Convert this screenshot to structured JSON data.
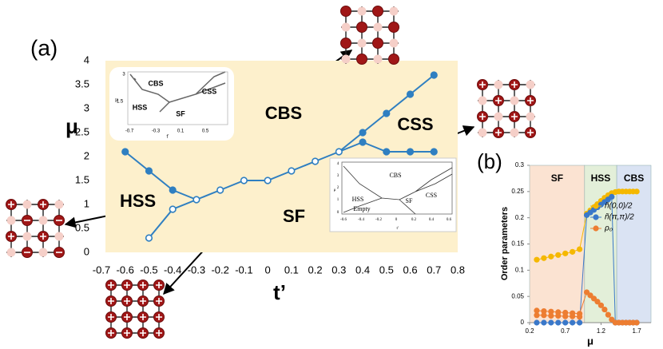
{
  "chart_data": [
    {
      "type": "line",
      "panel_label": "(a)",
      "xlabel": "t’",
      "ylabel": "μ",
      "xlim": [
        -0.7,
        0.8
      ],
      "xticks": [
        -0.7,
        -0.6,
        -0.5,
        -0.4,
        -0.3,
        -0.2,
        -0.1,
        0,
        0.1,
        0.2,
        0.3,
        0.4,
        0.5,
        0.6,
        0.7,
        0.8
      ],
      "ylim": [
        0,
        4
      ],
      "yticks": [
        0,
        0.5,
        1,
        1.5,
        2,
        2.5,
        3,
        3.5,
        4
      ],
      "background": "#fdf0cc",
      "color": "#2f7fc1",
      "annotations": [
        "CBS",
        "CSS",
        "HSS",
        "SF"
      ],
      "series": [
        {
          "marker": "filled",
          "x": [
            -0.6,
            -0.5,
            -0.4
          ],
          "values": [
            2.1,
            1.7,
            1.3
          ]
        },
        {
          "marker": "open",
          "x": [
            -0.5,
            -0.4,
            -0.3,
            -0.2,
            -0.1,
            0,
            0.1,
            0.2,
            0.3
          ],
          "values": [
            0.3,
            0.9,
            1.1,
            1.3,
            1.5,
            1.5,
            1.7,
            1.9,
            2.1
          ]
        },
        {
          "marker": "filled",
          "x": [
            0.4,
            0.5,
            0.6,
            0.7
          ],
          "values": [
            2.5,
            2.9,
            3.3,
            3.7
          ]
        },
        {
          "marker": "filled",
          "x": [
            0.4,
            0.5,
            0.6,
            0.7
          ],
          "values": [
            2.3,
            2.1,
            2.1,
            2.1
          ]
        }
      ],
      "insets": [
        {
          "texts": [
            "CBS",
            "CSS",
            "HSS",
            "SF",
            "μ",
            "t’",
            "3",
            "1.5",
            "-0.7",
            "-0.3",
            "0.1",
            "0.5"
          ]
        },
        {
          "texts": [
            "CBS",
            "CSS",
            "HSS",
            "SF",
            "Empty",
            "μ",
            "t’",
            "-0.6",
            "-0.4",
            "-0.2",
            "0",
            "0.2",
            "0.4",
            "0.6",
            "4",
            "3",
            "2",
            "1",
            "0"
          ]
        }
      ]
    },
    {
      "type": "scatter",
      "panel_label": "(b)",
      "xlabel": "μ",
      "ylabel": "Order parameters",
      "xlim": [
        0.2,
        1.9
      ],
      "xticks": [
        0.2,
        0.7,
        1.2,
        1.7
      ],
      "ylim": [
        0,
        0.3
      ],
      "yticks": [
        0,
        0.05,
        0.1,
        0.15,
        0.2,
        0.25,
        0.3
      ],
      "legend": "right",
      "regions": [
        {
          "label": "SF",
          "range": [
            0.2,
            0.97
          ],
          "color": "#fbe3d2"
        },
        {
          "label": "HSS",
          "range": [
            0.97,
            1.42
          ],
          "color": "#e3efd9"
        },
        {
          "label": "CBS",
          "range": [
            1.42,
            1.9
          ],
          "color": "#dae3f3"
        }
      ],
      "series": [
        {
          "name": "ñ(0,0)/2",
          "color": "#f5b800",
          "x": [
            0.3,
            0.4,
            0.5,
            0.6,
            0.7,
            0.8,
            0.9,
            1.0,
            1.05,
            1.1,
            1.15,
            1.2,
            1.25,
            1.3,
            1.35,
            1.4,
            1.45,
            1.5,
            1.55,
            1.6,
            1.65,
            1.7
          ],
          "values": [
            0.12,
            0.123,
            0.126,
            0.129,
            0.132,
            0.135,
            0.14,
            0.208,
            0.214,
            0.22,
            0.226,
            0.232,
            0.238,
            0.243,
            0.247,
            0.249,
            0.25,
            0.25,
            0.25,
            0.25,
            0.25,
            0.25
          ]
        },
        {
          "name": "ñ(π,π)/2",
          "color": "#3a78c9",
          "x": [
            0.3,
            0.4,
            0.5,
            0.6,
            0.7,
            0.8,
            0.9,
            1.0,
            1.05,
            1.1,
            1.15,
            1.2,
            1.25,
            1.3,
            1.35,
            1.4,
            1.45,
            1.5,
            1.55,
            1.6,
            1.65,
            1.7
          ],
          "values": [
            0,
            0,
            0,
            0,
            0,
            0,
            0,
            0.205,
            0.21,
            0.215,
            0.22,
            0.225,
            0.23,
            0.235,
            0.24,
            0,
            0,
            0,
            0,
            0,
            0,
            0
          ]
        },
        {
          "name": "ρ₀",
          "color": "#ed7d31",
          "x": [
            0.3,
            0.4,
            0.5,
            0.6,
            0.7,
            0.8,
            0.9,
            1.0,
            1.05,
            1.1,
            1.15,
            1.2,
            1.25,
            1.3,
            1.35,
            1.4,
            1.45,
            1.5,
            1.55,
            1.6,
            1.65,
            1.7
          ],
          "values": [
            0.023,
            0.022,
            0.021,
            0.02,
            0.019,
            0.018,
            0.017,
            0.058,
            0.052,
            0.046,
            0.04,
            0.033,
            0.025,
            0.015,
            0.006,
            0,
            0,
            0,
            0,
            0,
            0,
            0
          ]
        },
        {
          "color": "#ed7d31",
          "x": [
            0.3,
            0.4,
            0.5,
            0.6,
            0.7,
            0.8,
            0.9
          ],
          "values": [
            0.014,
            0.014,
            0.013,
            0.013,
            0.012,
            0.012,
            0.011
          ]
        }
      ]
    }
  ]
}
